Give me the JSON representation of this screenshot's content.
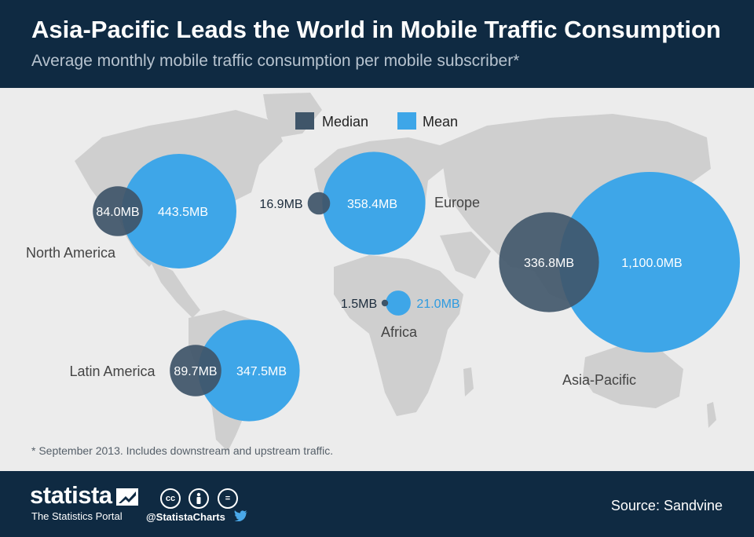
{
  "header": {
    "title": "Asia-Pacific Leads the World in Mobile Traffic Consumption",
    "subtitle": "Average monthly mobile traffic consumption per mobile subscriber*"
  },
  "chart_data": {
    "type": "bubble-map",
    "title": "Asia-Pacific Leads the World in Mobile Traffic Consumption",
    "subtitle": "Average monthly mobile traffic consumption per mobile subscriber*",
    "unit": "MB",
    "legend": {
      "position": "top-center",
      "items": [
        "Median",
        "Mean"
      ]
    },
    "series": [
      {
        "name": "Median",
        "color": "#3f5569"
      },
      {
        "name": "Mean",
        "color": "#3ea6e8"
      }
    ],
    "regions": [
      {
        "name": "North America",
        "median": 84.0,
        "mean": 443.5,
        "median_label": "84.0MB",
        "mean_label": "443.5MB"
      },
      {
        "name": "Europe",
        "median": 16.9,
        "mean": 358.4,
        "median_label": "16.9MB",
        "mean_label": "358.4MB"
      },
      {
        "name": "Africa",
        "median": 1.5,
        "mean": 21.0,
        "median_label": "1.5MB",
        "mean_label": "21.0MB"
      },
      {
        "name": "Latin America",
        "median": 89.7,
        "mean": 347.5,
        "median_label": "89.7MB",
        "mean_label": "347.5MB"
      },
      {
        "name": "Asia-Pacific",
        "median": 336.8,
        "mean": 1100.0,
        "median_label": "336.8MB",
        "mean_label": "1,100.0MB"
      }
    ]
  },
  "footnote": "* September 2013. Includes downstream and upstream traffic.",
  "footer": {
    "brand": "statista",
    "tagline": "The Statistics Portal",
    "license_icons": [
      "cc",
      "by",
      "="
    ],
    "handle": "@StatistaCharts",
    "source": "Source: Sandvine"
  }
}
